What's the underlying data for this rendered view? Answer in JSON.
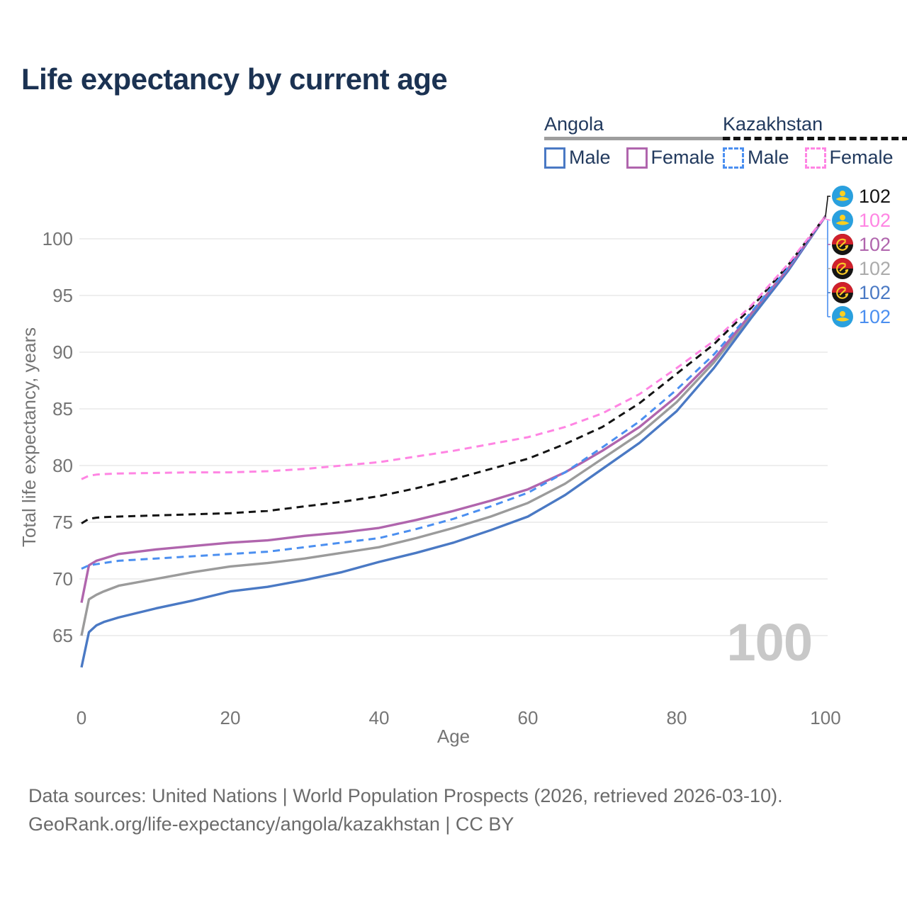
{
  "title": "Life expectancy by current age",
  "legend": {
    "groups": [
      {
        "title": "Angola",
        "underline_style": "solid",
        "underline_color": "#9e9e9e",
        "items": [
          {
            "label": "Male",
            "color": "#4a79c4",
            "line_style": "solid"
          },
          {
            "label": "Female",
            "color": "#b065ad",
            "line_style": "solid"
          }
        ]
      },
      {
        "title": "Kazakhstan",
        "underline_style": "dashed",
        "underline_color": "#141414",
        "items": [
          {
            "label": "Male",
            "color": "#4b8ff0",
            "line_style": "dashed"
          },
          {
            "label": "Female",
            "color": "#ff85e3",
            "line_style": "dashed"
          }
        ]
      }
    ]
  },
  "colors": {
    "title_text": "#1b3252",
    "legend_text": "#223a5e",
    "axis_text": "#757575",
    "grid": "#e8e8e8",
    "watermark": "#c8c8c8",
    "footer_text": "#6b6b6b"
  },
  "chart_data": {
    "type": "line",
    "title": "Life expectancy by current age",
    "xlabel": "Age",
    "ylabel": "Total life expectancy, years",
    "x_ticks": [
      0,
      20,
      40,
      60,
      80,
      100
    ],
    "y_ticks": [
      65,
      70,
      75,
      80,
      85,
      90,
      95,
      100
    ],
    "xlim": [
      0,
      100
    ],
    "ylim": [
      62,
      103
    ],
    "grid": "horizontal-only",
    "legend_position": "top-right",
    "watermark": "100",
    "ages": [
      0,
      1,
      2,
      3,
      5,
      10,
      15,
      20,
      25,
      30,
      35,
      40,
      45,
      50,
      55,
      60,
      65,
      70,
      75,
      80,
      85,
      90,
      95,
      100
    ],
    "series": [
      {
        "name": "Angola (both sexes)",
        "country": "Angola",
        "sex": "Both",
        "style": "solid",
        "color": "#9b9b9b",
        "values": [
          65.0,
          68.2,
          68.6,
          68.9,
          69.4,
          70.0,
          70.6,
          71.1,
          71.4,
          71.8,
          72.3,
          72.8,
          73.6,
          74.5,
          75.5,
          76.7,
          78.4,
          80.6,
          82.8,
          85.6,
          89.1,
          93.2,
          97.3,
          102
        ]
      },
      {
        "name": "Angola Male",
        "country": "Angola",
        "sex": "Male",
        "style": "solid",
        "color": "#4a79c4",
        "values": [
          62.2,
          65.3,
          65.9,
          66.2,
          66.6,
          67.4,
          68.1,
          68.9,
          69.3,
          69.9,
          70.6,
          71.5,
          72.3,
          73.2,
          74.3,
          75.5,
          77.4,
          79.7,
          82.0,
          84.8,
          88.6,
          93.0,
          97.2,
          102
        ]
      },
      {
        "name": "Angola Female",
        "country": "Angola",
        "sex": "Female",
        "style": "solid",
        "color": "#b065ad",
        "values": [
          67.9,
          71.2,
          71.6,
          71.8,
          72.2,
          72.6,
          72.9,
          73.2,
          73.4,
          73.8,
          74.1,
          74.5,
          75.2,
          76.0,
          76.9,
          77.9,
          79.4,
          81.3,
          83.4,
          86.1,
          89.4,
          93.4,
          97.4,
          102
        ]
      },
      {
        "name": "Kazakhstan Male",
        "country": "Kazakhstan",
        "sex": "Male",
        "style": "dashed",
        "color": "#4b8ff0",
        "values": [
          70.9,
          71.2,
          71.3,
          71.4,
          71.6,
          71.8,
          72.0,
          72.2,
          72.4,
          72.8,
          73.2,
          73.6,
          74.4,
          75.3,
          76.4,
          77.6,
          79.4,
          81.6,
          83.9,
          86.7,
          89.8,
          93.5,
          97.5,
          102
        ]
      },
      {
        "name": "Kazakhstan (both sexes)",
        "country": "Kazakhstan",
        "sex": "Both",
        "style": "dashed",
        "color": "#141414",
        "values": [
          74.9,
          75.3,
          75.4,
          75.45,
          75.5,
          75.6,
          75.7,
          75.8,
          76.0,
          76.4,
          76.8,
          77.3,
          78.0,
          78.8,
          79.7,
          80.6,
          81.9,
          83.4,
          85.5,
          88.1,
          90.7,
          93.9,
          97.7,
          102
        ]
      },
      {
        "name": "Kazakhstan Female",
        "country": "Kazakhstan",
        "sex": "Female",
        "style": "dashed",
        "color": "#ff85e3",
        "values": [
          78.8,
          79.1,
          79.2,
          79.25,
          79.3,
          79.35,
          79.4,
          79.4,
          79.5,
          79.7,
          80.0,
          80.3,
          80.8,
          81.3,
          81.9,
          82.5,
          83.4,
          84.6,
          86.3,
          88.6,
          91.0,
          94.1,
          97.8,
          102
        ]
      }
    ],
    "end_labels": [
      {
        "flag": "kazakhstan",
        "series": "Kazakhstan (both sexes)",
        "value": "102",
        "color": "#141414"
      },
      {
        "flag": "kazakhstan",
        "series": "Kazakhstan Female",
        "value": "102",
        "color": "#ff85e3"
      },
      {
        "flag": "angola",
        "series": "Angola Female",
        "value": "102",
        "color": "#b065ad"
      },
      {
        "flag": "angola",
        "series": "Angola (both sexes)",
        "value": "102",
        "color": "#ababab"
      },
      {
        "flag": "angola",
        "series": "Angola Male",
        "value": "102",
        "color": "#4a79c4"
      },
      {
        "flag": "kazakhstan",
        "series": "Kazakhstan Male",
        "value": "102",
        "color": "#4b8ff0"
      }
    ]
  },
  "footer": {
    "line1": "Data sources: United Nations | World Population Prospects (2026, retrieved 2026-03-10).",
    "line2": "GeoRank.org/life-expectancy/angola/kazakhstan | CC BY"
  }
}
